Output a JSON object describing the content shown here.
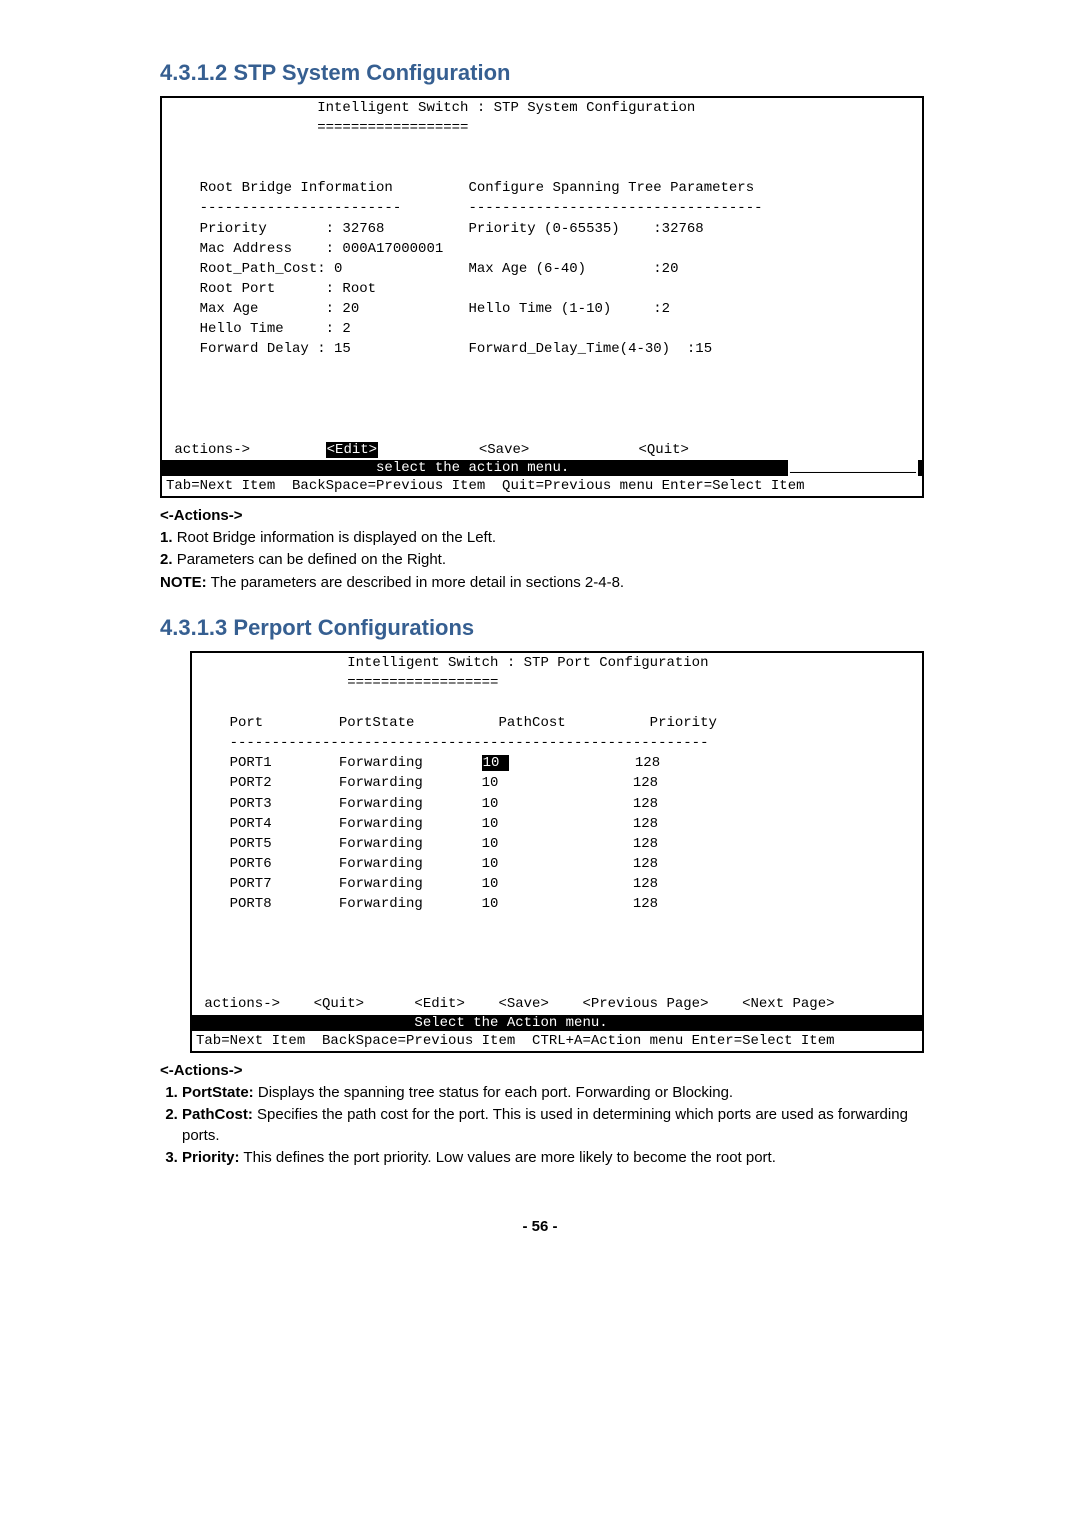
{
  "section1": {
    "heading": "4.3.1.2 STP System Configuration",
    "terminal": {
      "title_line": "                  Intelligent Switch : STP System Configuration",
      "title_underline": "                  ==================",
      "left_header": "    Root Bridge Information",
      "right_header": "Configure Spanning Tree Parameters",
      "left_dash": "    ------------------------",
      "right_dash": "-----------------------------------",
      "rows": [
        {
          "l": "    Priority       : 32768",
          "r": "Priority (0-65535)    :32768"
        },
        {
          "l": "    Mac Address    : 000A17000001",
          "r": ""
        },
        {
          "l": "    Root_Path_Cost: 0",
          "r": "Max Age (6-40)        :20"
        },
        {
          "l": "    Root Port      : Root",
          "r": ""
        },
        {
          "l": "    Max Age        : 20",
          "r": "Hello Time (1-10)     :2"
        },
        {
          "l": "    Hello Time     : 2",
          "r": ""
        },
        {
          "l": "    Forward Delay : 15",
          "r": "Forward_Delay_Time(4-30)  :15"
        }
      ],
      "actions_prefix": " actions->         ",
      "edit": "<Edit>",
      "save_segment": "            <Save>             ",
      "quit": "<Quit>",
      "status_black": "                         select the action menu.                             ",
      "status_right_overlay": "_______________",
      "footer": "Tab=Next Item  BackSpace=Previous Item  Quit=Previous menu Enter=Select Item"
    },
    "actions_label": "<-Actions->",
    "list": [
      "Root Bridge information is displayed on the Left.",
      "Parameters can be defined on the Right."
    ],
    "note_label": "NOTE:",
    "note_text": " The parameters are described in more detail in sections 2-4-8."
  },
  "section2": {
    "heading": "4.3.1.3 Perport Configurations",
    "terminal": {
      "title_line": "                  Intelligent Switch : STP Port Configuration",
      "title_underline": "                  ==================",
      "table_header": "    Port         PortState          PathCost          Priority",
      "table_dash": "    ---------------------------------------------------------",
      "rows": [
        {
          "port": "PORT1",
          "state": "Forwarding",
          "cost": "10",
          "prio": "128",
          "hl": true
        },
        {
          "port": "PORT2",
          "state": "Forwarding",
          "cost": "10",
          "prio": "128",
          "hl": false
        },
        {
          "port": "PORT3",
          "state": "Forwarding",
          "cost": "10",
          "prio": "128",
          "hl": false
        },
        {
          "port": "PORT4",
          "state": "Forwarding",
          "cost": "10",
          "prio": "128",
          "hl": false
        },
        {
          "port": "PORT5",
          "state": "Forwarding",
          "cost": "10",
          "prio": "128",
          "hl": false
        },
        {
          "port": "PORT6",
          "state": "Forwarding",
          "cost": "10",
          "prio": "128",
          "hl": false
        },
        {
          "port": "PORT7",
          "state": "Forwarding",
          "cost": "10",
          "prio": "128",
          "hl": false
        },
        {
          "port": "PORT8",
          "state": "Forwarding",
          "cost": "10",
          "prio": "128",
          "hl": false
        }
      ],
      "actions_line": " actions->    <Quit>      <Edit>    <Save>    <Previous Page>    <Next Page>",
      "status_black": "                          Select the Action menu.                            ",
      "footer": "Tab=Next Item  BackSpace=Previous Item  CTRL+A=Action menu Enter=Select Item"
    },
    "actions_label": "<-Actions->",
    "items": [
      {
        "term": "PortState:",
        "text": " Displays the spanning tree status for each port. Forwarding or Blocking."
      },
      {
        "term": "PathCost:",
        "text": " Specifies the path cost for the port. This is used in determining which ports are used as forwarding ports."
      },
      {
        "term": "Priority:",
        "text": " This defines the port priority. Low values are more likely to become the root port."
      }
    ]
  },
  "page_number": "- 56 -"
}
